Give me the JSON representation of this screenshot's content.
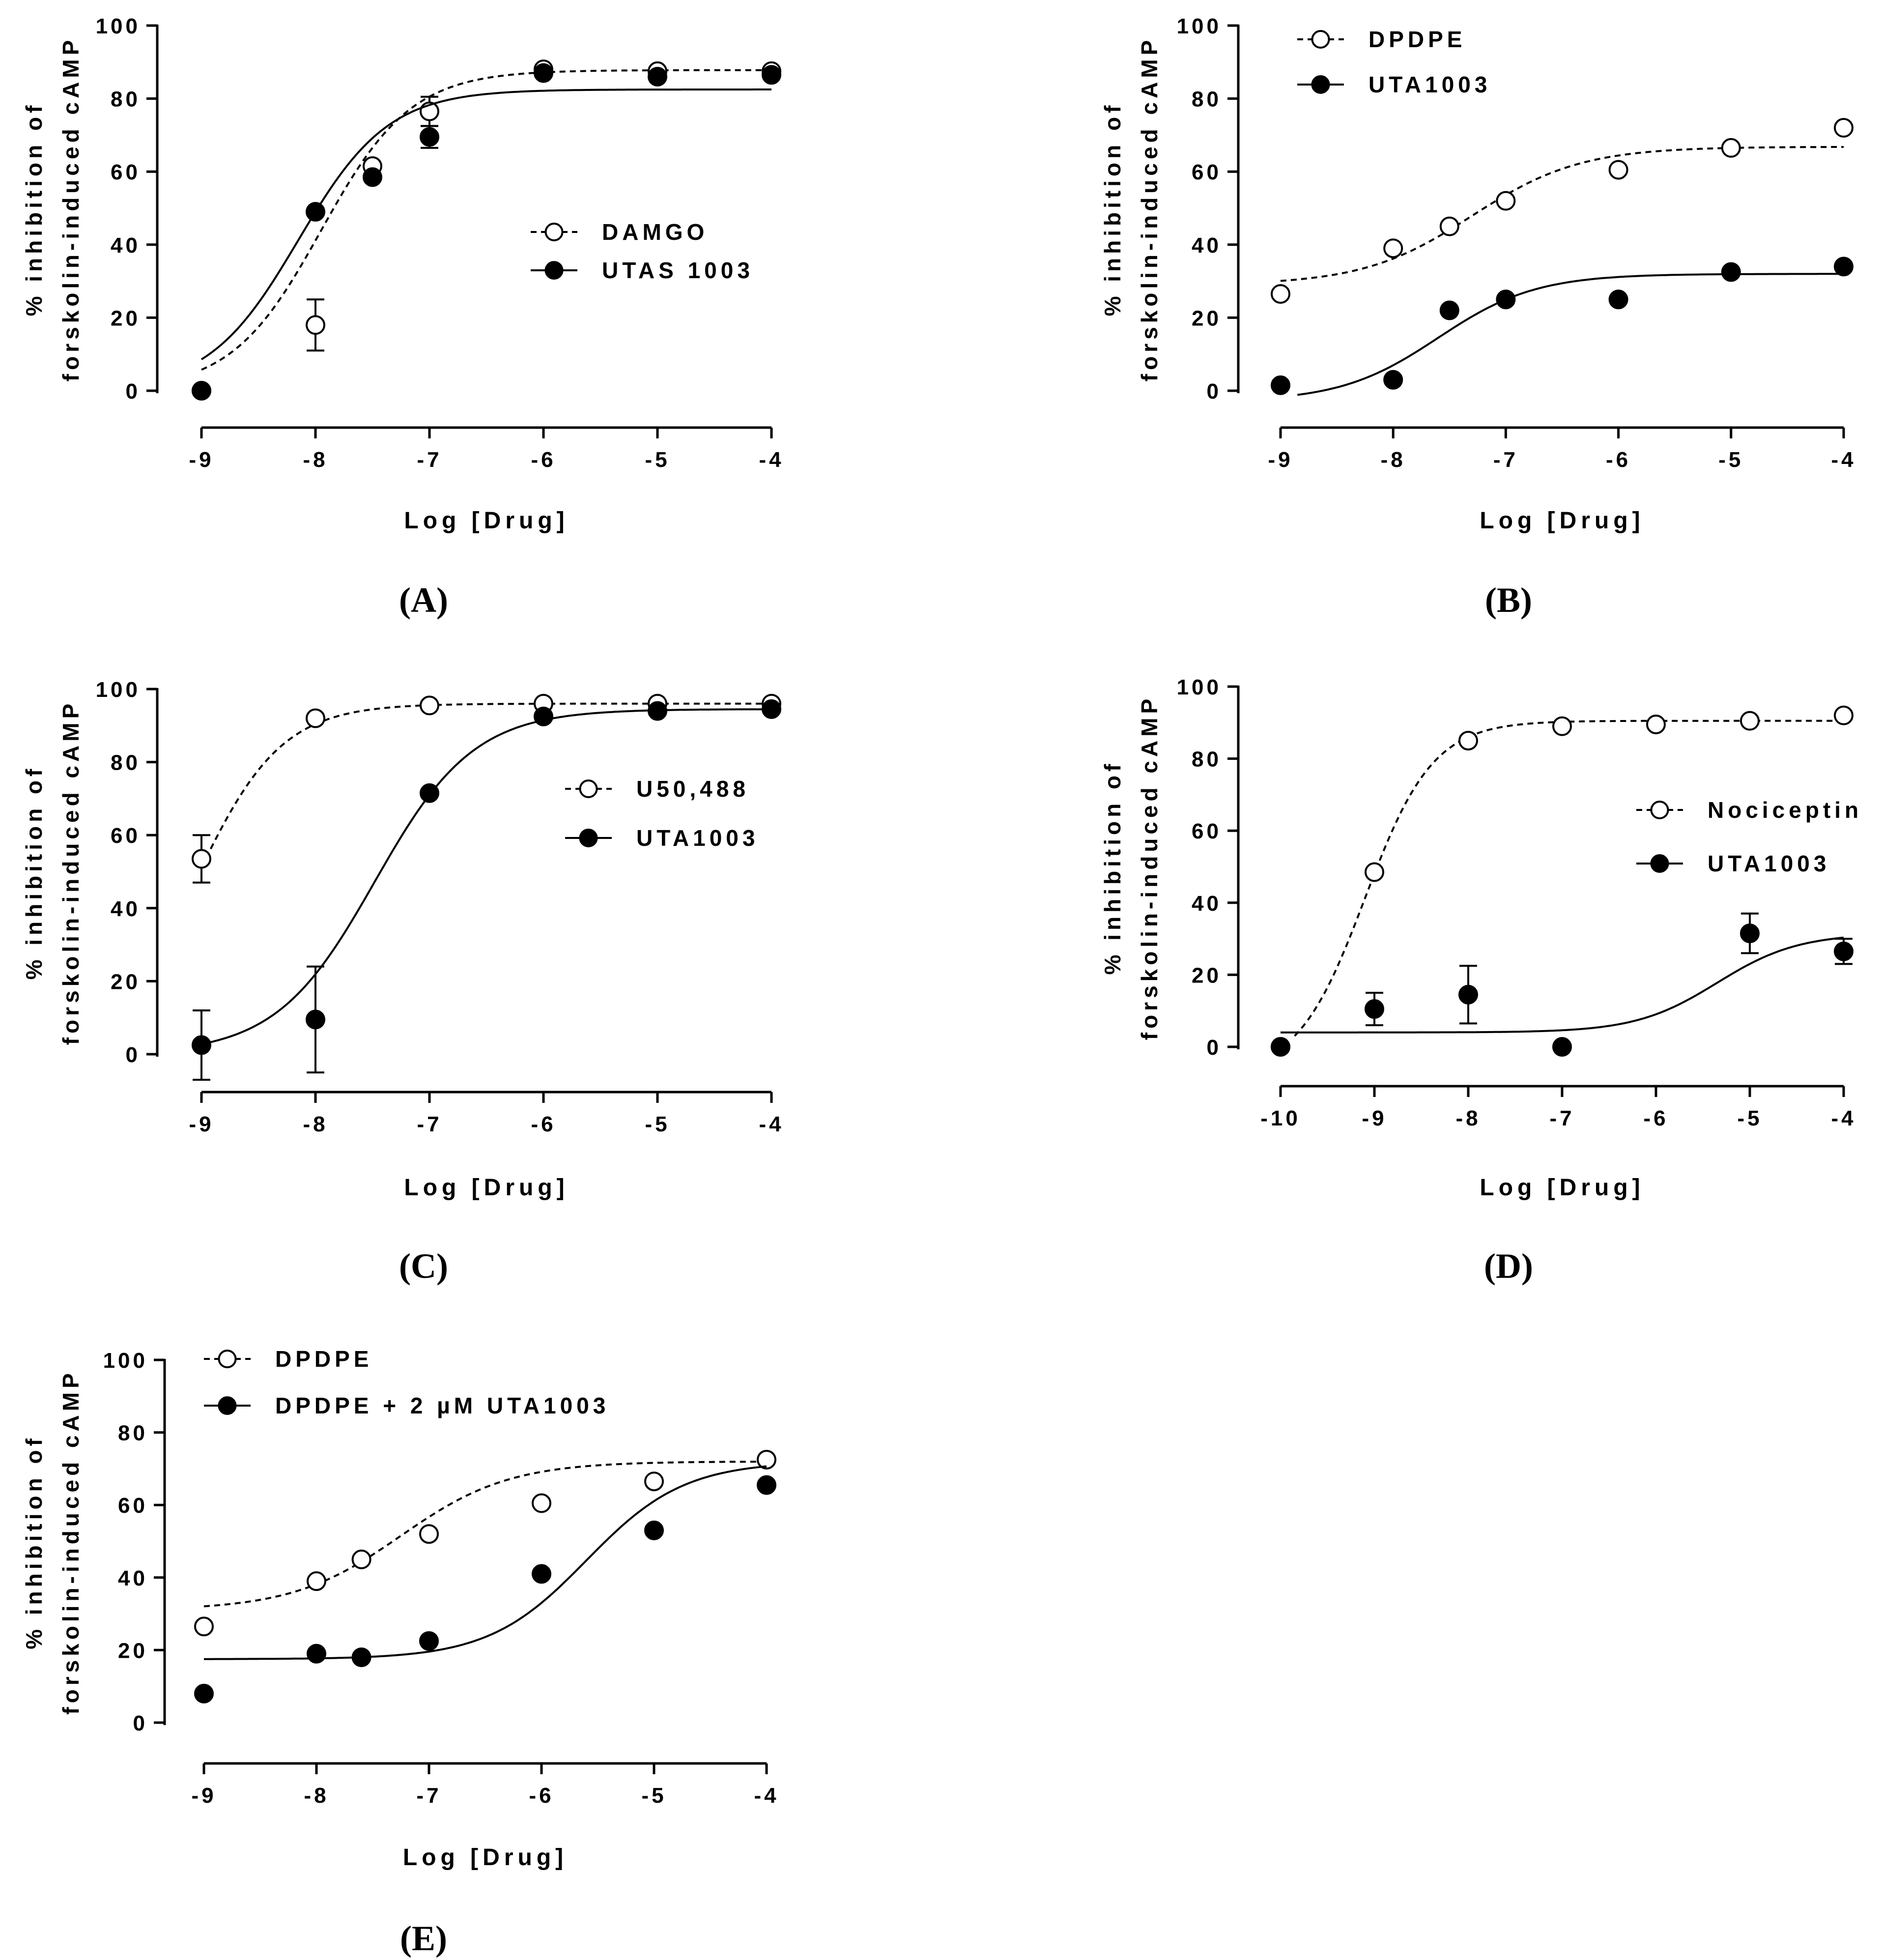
{
  "chart_data": [
    {
      "type": "scatter",
      "panel_label": "(A)",
      "xlabel": "Log [Drug]",
      "ylabel_line1": "% inhibition of",
      "ylabel_line2": "forskolin-induced cAMP",
      "xlim": [
        -9,
        -4
      ],
      "ylim": [
        0,
        100
      ],
      "xticks": [
        "-9",
        "-8",
        "-7",
        "-6",
        "-5",
        "-4"
      ],
      "yticks": [
        "0",
        "20",
        "40",
        "60",
        "80",
        "100"
      ],
      "legend_position": "center-right",
      "series": [
        {
          "name": "DAMGO",
          "marker": "open",
          "line": "dashed",
          "x": [
            -9,
            -8,
            -7.5,
            -7,
            -6,
            -5,
            -4
          ],
          "y": [
            0,
            18,
            61.5,
            76.5,
            88,
            87.5,
            87.5
          ],
          "err": [
            0,
            7,
            0,
            4,
            0,
            0,
            0
          ],
          "fit": {
            "bottom": 0,
            "top": 87.8,
            "logEC50": -7.95,
            "hill": 1.1
          }
        },
        {
          "name": "UTAS 1003",
          "marker": "filled",
          "line": "solid",
          "x": [
            -9,
            -8,
            -7.5,
            -7,
            -6,
            -5,
            -4
          ],
          "y": [
            0,
            49,
            58.5,
            69.5,
            87,
            86,
            86.5
          ],
          "err": [
            0,
            0,
            0,
            3,
            0,
            0,
            0
          ],
          "fit": {
            "bottom": 0,
            "top": 82.5,
            "logEC50": -8.15,
            "hill": 1.1
          }
        }
      ]
    },
    {
      "type": "scatter",
      "panel_label": "(B)",
      "xlabel": "Log [Drug]",
      "ylabel_line1": "% inhibition of",
      "ylabel_line2": "forskolin-induced cAMP",
      "xlim": [
        -9,
        -4
      ],
      "ylim": [
        0,
        100
      ],
      "xticks": [
        "-9",
        "-8",
        "-7",
        "-6",
        "-5",
        "-4"
      ],
      "yticks": [
        "0",
        "20",
        "40",
        "60",
        "80",
        "100"
      ],
      "legend_position": "top-left",
      "series": [
        {
          "name": "DPDPE",
          "marker": "open",
          "line": "dashed",
          "x": [
            -9,
            -8,
            -7.5,
            -7,
            -6,
            -5,
            -4
          ],
          "y": [
            26.5,
            39,
            45,
            52,
            60.5,
            66.5,
            72
          ],
          "err": [
            0,
            0,
            0,
            0,
            0,
            0,
            0
          ],
          "fit": {
            "bottom": 29,
            "top": 66.8,
            "logEC50": -7.3,
            "hill": 0.9,
            "xstart": -9
          }
        },
        {
          "name": "UTA1003",
          "marker": "filled",
          "line": "solid",
          "x": [
            -9,
            -8,
            -7.5,
            -7,
            -6,
            -5,
            -4
          ],
          "y": [
            1.5,
            3,
            22,
            25,
            25,
            32.5,
            34
          ],
          "err": [
            0,
            0,
            0,
            0,
            0,
            0,
            0
          ],
          "fit": {
            "bottom": -3,
            "top": 32,
            "logEC50": -7.6,
            "hill": 1.0,
            "xstart": -8.85
          }
        }
      ]
    },
    {
      "type": "scatter",
      "panel_label": "(C)",
      "xlabel": "Log [Drug]",
      "ylabel_line1": "% inhibition of",
      "ylabel_line2": "forskolin-induced cAMP",
      "xlim": [
        -9,
        -4
      ],
      "ylim": [
        0,
        100
      ],
      "xticks": [
        "-9",
        "-8",
        "-7",
        "-6",
        "-5",
        "-4"
      ],
      "yticks": [
        "0",
        "20",
        "40",
        "60",
        "80",
        "100"
      ],
      "legend_position": "center-right",
      "series": [
        {
          "name": "U50,488",
          "marker": "open",
          "line": "dashed",
          "x": [
            -9,
            -8,
            -7,
            -6,
            -5,
            -4
          ],
          "y": [
            53.5,
            92,
            95.5,
            96,
            96,
            96
          ],
          "err": [
            6.5,
            0,
            0,
            0,
            0,
            0
          ],
          "fit": {
            "bottom": 0,
            "top": 96,
            "logEC50": -9.05,
            "hill": 1.15
          }
        },
        {
          "name": "UTA1003",
          "marker": "filled",
          "line": "solid",
          "x": [
            -9,
            -8,
            -7,
            -6,
            -5,
            -4
          ],
          "y": [
            2.5,
            9.5,
            71.5,
            92.5,
            94,
            94.5
          ],
          "err": [
            9.5,
            14.5,
            0,
            0,
            0,
            0
          ],
          "fit": {
            "bottom": 0,
            "top": 94.5,
            "logEC50": -7.48,
            "hill": 1.0
          }
        }
      ]
    },
    {
      "type": "scatter",
      "panel_label": "(D)",
      "xlabel": "Log [Drug]",
      "ylabel_line1": "% inhibition of",
      "ylabel_line2": "forskolin-induced cAMP",
      "xlim": [
        -10,
        -4
      ],
      "ylim": [
        0,
        100
      ],
      "xticks": [
        "-10",
        "-9",
        "-8",
        "-7",
        "-6",
        "-5",
        "-4"
      ],
      "yticks": [
        "0",
        "20",
        "40",
        "60",
        "80",
        "100"
      ],
      "legend_position": "center-right",
      "series": [
        {
          "name": "Nociceptin",
          "marker": "open",
          "line": "dashed",
          "x": [
            -10,
            -9,
            -8,
            -7,
            -6,
            -5,
            -4
          ],
          "y": [
            0,
            48.5,
            85,
            89,
            89.5,
            90.5,
            92
          ],
          "err": [
            0,
            0,
            0,
            0,
            0,
            0,
            0
          ],
          "fit": {
            "bottom": -8,
            "top": 90.5,
            "logEC50": -9.1,
            "hill": 1.2,
            "xstart": -9.85
          }
        },
        {
          "name": "UTA1003",
          "marker": "filled",
          "line": "solid",
          "x": [
            -10,
            -9,
            -8,
            -7,
            -5,
            -4
          ],
          "y": [
            0,
            10.5,
            14.5,
            0,
            31.5,
            26.5
          ],
          "err": [
            0,
            4.5,
            8,
            0,
            5.5,
            3.5
          ],
          "fit": {
            "bottom": 4,
            "top": 31.5,
            "logEC50": -5.35,
            "hill": 1.0,
            "xstart": -10
          }
        }
      ]
    },
    {
      "type": "scatter",
      "panel_label": "(E)",
      "xlabel": "Log [Drug]",
      "ylabel_line1": "% inhibition of",
      "ylabel_line2": "forskolin-induced cAMP",
      "xlim": [
        -9,
        -4
      ],
      "ylim": [
        0,
        100
      ],
      "xticks": [
        "-9",
        "-8",
        "-7",
        "-6",
        "-5",
        "-4"
      ],
      "yticks": [
        "0",
        "20",
        "40",
        "60",
        "80",
        "100"
      ],
      "legend_position": "top-left",
      "series": [
        {
          "name": "DPDPE",
          "marker": "open",
          "line": "dashed",
          "x": [
            -9,
            -8,
            -7.6,
            -7,
            -6,
            -5,
            -4
          ],
          "y": [
            26.5,
            39,
            45,
            52,
            60.5,
            66.5,
            72.5
          ],
          "err": [
            0,
            0,
            0,
            0,
            0,
            0,
            0
          ],
          "fit": {
            "bottom": 31,
            "top": 72,
            "logEC50": -7.25,
            "hill": 0.9
          }
        },
        {
          "name": "DPDPE + 2 µM UTA1003",
          "marker": "filled",
          "line": "solid",
          "x": [
            -9,
            -8,
            -7.6,
            -7,
            -6,
            -5,
            -4
          ],
          "y": [
            8,
            19,
            18,
            22.5,
            41,
            53,
            65.5
          ],
          "err": [
            0,
            0,
            0,
            0,
            0,
            0,
            0
          ],
          "fit": {
            "bottom": 17.5,
            "top": 72,
            "logEC50": -5.6,
            "hill": 1.0
          }
        }
      ]
    }
  ]
}
